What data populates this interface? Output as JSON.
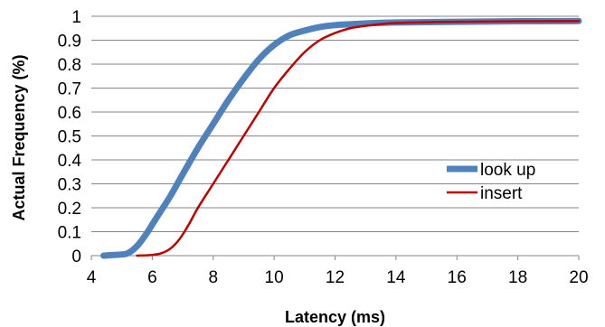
{
  "chart_data": {
    "type": "line",
    "title": "",
    "xlabel": "Latency (ms)",
    "ylabel": "Actual Frequency (%)",
    "xlim": [
      4,
      20
    ],
    "ylim": [
      0,
      1
    ],
    "x_ticks": [
      "4",
      "6",
      "8",
      "10",
      "12",
      "14",
      "16",
      "18",
      "20"
    ],
    "y_ticks": [
      "0",
      "0.1",
      "0.2",
      "0.3",
      "0.4",
      "0.5",
      "0.6",
      "0.7",
      "0.8",
      "0.9",
      "1"
    ],
    "grid": "horizontal-major",
    "legend_position": "right-middle",
    "series": [
      {
        "name": "look up",
        "color": "#4F81BD",
        "x": [
          4.4,
          5.0,
          5.2,
          5.5,
          5.8,
          6.0,
          6.3,
          6.6,
          7.0,
          7.5,
          8.0,
          8.5,
          9.0,
          9.5,
          10.0,
          10.5,
          11.0,
          11.5,
          12.0,
          13.0,
          14.0,
          16.0,
          18.0,
          20.0
        ],
        "y": [
          0.0,
          0.005,
          0.01,
          0.04,
          0.09,
          0.13,
          0.19,
          0.25,
          0.34,
          0.45,
          0.55,
          0.65,
          0.74,
          0.82,
          0.88,
          0.92,
          0.94,
          0.955,
          0.963,
          0.97,
          0.974,
          0.977,
          0.979,
          0.98
        ]
      },
      {
        "name": "insert",
        "color": "#C00000",
        "x": [
          5.5,
          6.0,
          6.3,
          6.6,
          6.9,
          7.2,
          7.5,
          8.0,
          8.5,
          9.0,
          9.5,
          10.0,
          10.5,
          11.0,
          11.5,
          12.0,
          12.5,
          13.0,
          13.5,
          14.0,
          15.0,
          16.0,
          18.0,
          20.0
        ],
        "y": [
          0.0,
          0.003,
          0.01,
          0.03,
          0.07,
          0.13,
          0.2,
          0.3,
          0.4,
          0.5,
          0.6,
          0.7,
          0.78,
          0.85,
          0.9,
          0.93,
          0.95,
          0.96,
          0.967,
          0.972,
          0.975,
          0.977,
          0.979,
          0.98
        ]
      }
    ]
  }
}
